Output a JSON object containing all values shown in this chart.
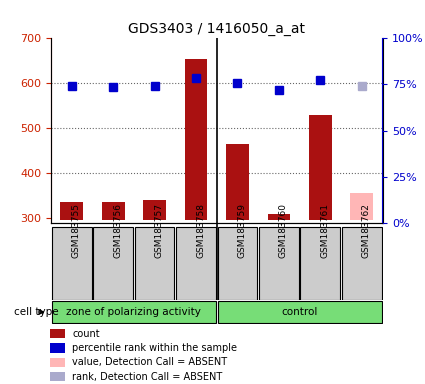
{
  "title": "GDS3403 / 1416050_a_at",
  "samples": [
    "GSM183755",
    "GSM183756",
    "GSM183757",
    "GSM183758",
    "GSM183759",
    "GSM183760",
    "GSM183761",
    "GSM183762"
  ],
  "count_values": [
    335,
    335,
    340,
    655,
    465,
    310,
    530,
    null
  ],
  "count_absent": [
    null,
    null,
    null,
    null,
    null,
    null,
    null,
    355
  ],
  "percentile_values": [
    74,
    73.5,
    74,
    78,
    75.5,
    71.5,
    77,
    null
  ],
  "percentile_absent": [
    null,
    null,
    null,
    null,
    null,
    null,
    null,
    74
  ],
  "ylim_left": [
    290,
    700
  ],
  "ylim_right": [
    0,
    100
  ],
  "yticks_left": [
    300,
    400,
    500,
    600,
    700
  ],
  "yticks_right": [
    0,
    25,
    50,
    75,
    100
  ],
  "group1_label": "zone of polarizing activity",
  "group2_label": "control",
  "group1_count": 4,
  "group2_count": 4,
  "bar_color_present": "#AA1111",
  "bar_color_absent": "#FFB6B6",
  "dot_color_present": "#0000CC",
  "dot_color_absent": "#AAAACC",
  "bar_bottom": 295,
  "bar_width": 0.55,
  "legend_items": [
    {
      "label": "count",
      "color": "#AA1111",
      "marker": "s",
      "style": "solid"
    },
    {
      "label": "percentile rank within the sample",
      "color": "#0000CC",
      "marker": "s",
      "style": "solid"
    },
    {
      "label": "value, Detection Call = ABSENT",
      "color": "#FFB6B6",
      "marker": "s",
      "style": "solid"
    },
    {
      "label": "rank, Detection Call = ABSENT",
      "color": "#AAAACC",
      "marker": "s",
      "style": "solid"
    }
  ],
  "grid_color": "#000000",
  "grid_alpha": 0.4,
  "cell_type_label": "cell type",
  "group_bg_color": "#77DD77",
  "tick_area_bg": "#CCCCCC"
}
